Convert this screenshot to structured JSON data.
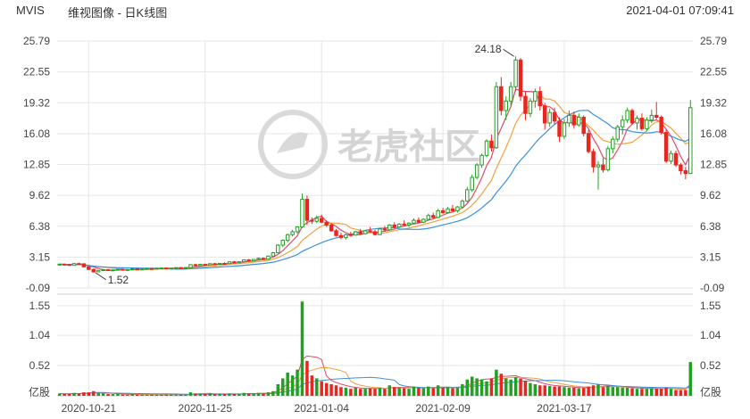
{
  "header": {
    "ticker": "MVIS",
    "subtitle": "维视图像 - 日K线图",
    "timestamp": "2021-04-01 07:09:41"
  },
  "watermark": {
    "text": "老虎社区"
  },
  "colors": {
    "up": "#21a121",
    "down": "#e8261f",
    "ma5": "#e04a6a",
    "ma10": "#f0a040",
    "ma20": "#3c8fdc",
    "grid": "#e6e6e6"
  },
  "chart_data": {
    "type": "candlestick",
    "price_ticks": [
      "25.79",
      "22.55",
      "19.32",
      "16.08",
      "12.85",
      "9.62",
      "6.38",
      "3.15",
      "-0.09"
    ],
    "volume_ticks": [
      "1.55",
      "1.04",
      "0.52"
    ],
    "volume_unit": "亿股",
    "x_labels": [
      "2020-10-21",
      "2020-11-25",
      "2021-01-04",
      "2021-02-09",
      "2021-03-17"
    ],
    "annotations": [
      {
        "text": "24.18",
        "date": "2021-02-09"
      },
      {
        "text": "1.52",
        "date": "2020-10-26"
      }
    ],
    "candles": [
      [
        2.38,
        2.45,
        2.3,
        2.4,
        0.04
      ],
      [
        2.4,
        2.48,
        2.33,
        2.36,
        0.03
      ],
      [
        2.36,
        2.42,
        2.25,
        2.28,
        0.03
      ],
      [
        2.28,
        2.52,
        2.26,
        2.46,
        0.05
      ],
      [
        2.46,
        2.56,
        2.4,
        2.44,
        0.04
      ],
      [
        2.44,
        2.5,
        2.1,
        2.12,
        0.06
      ],
      [
        2.12,
        2.18,
        1.8,
        1.85,
        0.06
      ],
      [
        1.85,
        1.95,
        1.52,
        1.6,
        0.08
      ],
      [
        1.6,
        1.8,
        1.55,
        1.75,
        0.05
      ],
      [
        1.75,
        1.9,
        1.7,
        1.82,
        0.04
      ],
      [
        1.82,
        1.88,
        1.7,
        1.74,
        0.03
      ],
      [
        1.74,
        1.85,
        1.68,
        1.8,
        0.03
      ],
      [
        1.8,
        1.9,
        1.75,
        1.86,
        0.03
      ],
      [
        1.86,
        1.92,
        1.78,
        1.8,
        0.02
      ],
      [
        1.8,
        1.88,
        1.74,
        1.84,
        0.02
      ],
      [
        1.84,
        1.96,
        1.8,
        1.92,
        0.03
      ],
      [
        1.92,
        1.98,
        1.82,
        1.86,
        0.02
      ],
      [
        1.86,
        1.94,
        1.8,
        1.9,
        0.02
      ],
      [
        1.9,
        1.98,
        1.85,
        1.95,
        0.02
      ],
      [
        1.95,
        2.02,
        1.88,
        1.92,
        0.02
      ],
      [
        1.92,
        2.0,
        1.86,
        1.98,
        0.02
      ],
      [
        1.98,
        2.06,
        1.92,
        2.0,
        0.02
      ],
      [
        2.0,
        2.05,
        1.9,
        1.94,
        0.02
      ],
      [
        1.94,
        2.02,
        1.88,
        1.99,
        0.02
      ],
      [
        1.99,
        2.08,
        1.95,
        2.04,
        0.02
      ],
      [
        2.04,
        2.1,
        1.96,
        2.0,
        0.02
      ],
      [
        2.0,
        2.08,
        1.95,
        2.05,
        0.02
      ],
      [
        2.05,
        2.4,
        2.02,
        2.35,
        0.06
      ],
      [
        2.35,
        2.45,
        2.2,
        2.25,
        0.04
      ],
      [
        2.25,
        2.4,
        2.2,
        2.38,
        0.04
      ],
      [
        2.38,
        2.46,
        2.28,
        2.32,
        0.03
      ],
      [
        2.32,
        2.5,
        2.28,
        2.45,
        0.04
      ],
      [
        2.45,
        2.55,
        2.35,
        2.4,
        0.03
      ],
      [
        2.4,
        2.52,
        2.36,
        2.48,
        0.03
      ],
      [
        2.48,
        2.6,
        2.4,
        2.46,
        0.03
      ],
      [
        2.46,
        2.7,
        2.42,
        2.65,
        0.04
      ],
      [
        2.65,
        2.75,
        2.5,
        2.55,
        0.03
      ],
      [
        2.55,
        2.7,
        2.5,
        2.66,
        0.03
      ],
      [
        2.66,
        2.9,
        2.6,
        2.85,
        0.05
      ],
      [
        2.85,
        2.95,
        2.7,
        2.75,
        0.04
      ],
      [
        2.75,
        2.95,
        2.7,
        2.9,
        0.04
      ],
      [
        2.9,
        3.1,
        2.8,
        3.02,
        0.05
      ],
      [
        3.02,
        3.1,
        2.85,
        2.92,
        0.04
      ],
      [
        2.92,
        3.3,
        2.9,
        3.25,
        0.06
      ],
      [
        3.25,
        3.7,
        3.2,
        3.6,
        0.08
      ],
      [
        3.6,
        4.5,
        3.55,
        4.4,
        0.2
      ],
      [
        4.4,
        5.0,
        4.2,
        4.9,
        0.3
      ],
      [
        4.9,
        5.6,
        4.7,
        5.5,
        0.4
      ],
      [
        5.5,
        6.0,
        5.3,
        5.8,
        0.35
      ],
      [
        5.8,
        6.4,
        5.6,
        6.3,
        0.45
      ],
      [
        6.3,
        9.8,
        6.2,
        9.2,
        1.62
      ],
      [
        9.2,
        9.6,
        6.5,
        7.0,
        0.6
      ],
      [
        7.0,
        7.3,
        6.6,
        6.9,
        0.35
      ],
      [
        6.9,
        7.5,
        6.7,
        7.2,
        0.3
      ],
      [
        7.2,
        7.6,
        6.7,
        6.8,
        0.25
      ],
      [
        6.8,
        7.0,
        6.3,
        6.5,
        0.22
      ],
      [
        6.5,
        6.7,
        5.8,
        5.9,
        0.2
      ],
      [
        5.9,
        6.1,
        5.3,
        5.4,
        0.18
      ],
      [
        5.4,
        5.7,
        5.0,
        5.2,
        0.15
      ],
      [
        5.2,
        5.6,
        5.0,
        5.5,
        0.14
      ],
      [
        5.5,
        5.8,
        5.3,
        5.45,
        0.12
      ],
      [
        5.45,
        5.9,
        5.4,
        5.8,
        0.14
      ],
      [
        5.8,
        6.1,
        5.5,
        5.6,
        0.12
      ],
      [
        5.6,
        6.0,
        5.5,
        5.9,
        0.12
      ],
      [
        5.9,
        6.3,
        5.7,
        5.8,
        0.13
      ],
      [
        5.8,
        6.0,
        5.4,
        5.5,
        0.12
      ],
      [
        5.5,
        6.2,
        5.45,
        6.1,
        0.14
      ],
      [
        6.1,
        6.4,
        5.8,
        6.0,
        0.12
      ],
      [
        6.0,
        6.6,
        5.9,
        6.5,
        0.18
      ],
      [
        6.5,
        6.8,
        6.2,
        6.3,
        0.15
      ],
      [
        6.3,
        6.7,
        6.2,
        6.6,
        0.14
      ],
      [
        6.6,
        7.0,
        6.4,
        6.5,
        0.13
      ],
      [
        6.5,
        6.8,
        6.3,
        6.7,
        0.12
      ],
      [
        6.7,
        7.2,
        6.6,
        7.0,
        0.16
      ],
      [
        7.0,
        7.3,
        6.7,
        6.8,
        0.14
      ],
      [
        6.8,
        7.2,
        6.7,
        7.1,
        0.13
      ],
      [
        7.1,
        7.7,
        7.0,
        7.5,
        0.16
      ],
      [
        7.5,
        7.8,
        7.2,
        7.3,
        0.13
      ],
      [
        7.3,
        8.2,
        7.2,
        8.0,
        0.18
      ],
      [
        8.0,
        8.3,
        7.7,
        7.8,
        0.14
      ],
      [
        7.8,
        8.4,
        7.7,
        8.2,
        0.15
      ],
      [
        8.2,
        8.6,
        7.9,
        8.0,
        0.13
      ],
      [
        8.0,
        8.5,
        7.8,
        8.4,
        0.14
      ],
      [
        8.4,
        9.2,
        8.3,
        9.0,
        0.2
      ],
      [
        9.0,
        10.5,
        8.9,
        10.2,
        0.28
      ],
      [
        10.2,
        11.8,
        10.0,
        11.5,
        0.33
      ],
      [
        11.5,
        13.0,
        11.3,
        12.8,
        0.3
      ],
      [
        12.8,
        14.0,
        12.5,
        13.8,
        0.28
      ],
      [
        13.8,
        15.5,
        13.6,
        15.3,
        0.25
      ],
      [
        15.3,
        16.0,
        14.2,
        14.6,
        0.3
      ],
      [
        14.6,
        21.5,
        14.5,
        21.0,
        0.45
      ],
      [
        21.0,
        22.0,
        18.0,
        18.5,
        0.38
      ],
      [
        18.5,
        20.0,
        17.5,
        19.5,
        0.3
      ],
      [
        19.5,
        21.5,
        19.0,
        21.0,
        0.28
      ],
      [
        21.0,
        24.18,
        20.5,
        23.8,
        0.32
      ],
      [
        23.8,
        24.0,
        19.5,
        20.0,
        0.3
      ],
      [
        20.0,
        20.5,
        17.5,
        18.2,
        0.26
      ],
      [
        18.2,
        19.8,
        17.8,
        19.5,
        0.22
      ],
      [
        19.5,
        20.8,
        18.8,
        20.5,
        0.2
      ],
      [
        20.5,
        21.0,
        18.5,
        19.0,
        0.18
      ],
      [
        19.0,
        19.3,
        16.5,
        17.2,
        0.18
      ],
      [
        17.2,
        18.7,
        16.8,
        18.3,
        0.17
      ],
      [
        18.3,
        18.8,
        17.0,
        17.4,
        0.16
      ],
      [
        17.4,
        17.8,
        15.2,
        15.8,
        0.16
      ],
      [
        15.8,
        17.6,
        15.5,
        17.2,
        0.15
      ],
      [
        17.2,
        18.5,
        16.8,
        18.0,
        0.14
      ],
      [
        18.0,
        18.4,
        16.6,
        17.0,
        0.14
      ],
      [
        17.0,
        18.2,
        16.8,
        17.8,
        0.13
      ],
      [
        17.8,
        18.0,
        15.8,
        16.1,
        0.13
      ],
      [
        16.1,
        16.5,
        14.0,
        14.2,
        0.16
      ],
      [
        14.2,
        14.5,
        12.0,
        12.6,
        0.18
      ],
      [
        12.6,
        13.2,
        10.2,
        12.8,
        0.2
      ],
      [
        12.8,
        13.5,
        12.0,
        12.3,
        0.15
      ],
      [
        12.3,
        14.8,
        12.1,
        14.5,
        0.17
      ],
      [
        14.5,
        15.8,
        14.0,
        15.5,
        0.15
      ],
      [
        15.5,
        17.0,
        15.2,
        16.8,
        0.15
      ],
      [
        16.8,
        18.0,
        16.0,
        17.5,
        0.14
      ],
      [
        17.5,
        18.8,
        17.2,
        18.5,
        0.14
      ],
      [
        18.5,
        18.7,
        17.0,
        17.2,
        0.13
      ],
      [
        17.2,
        18.0,
        16.5,
        17.7,
        0.12
      ],
      [
        17.7,
        18.2,
        16.4,
        16.6,
        0.12
      ],
      [
        16.6,
        17.8,
        16.3,
        17.5,
        0.12
      ],
      [
        17.5,
        18.6,
        17.2,
        18.0,
        0.13
      ],
      [
        18.0,
        19.4,
        17.6,
        17.8,
        0.12
      ],
      [
        17.8,
        18.0,
        16.0,
        16.2,
        0.12
      ],
      [
        16.2,
        16.5,
        13.0,
        13.2,
        0.14
      ],
      [
        13.2,
        14.3,
        12.9,
        14.0,
        0.12
      ],
      [
        14.0,
        14.3,
        12.6,
        12.8,
        0.1
      ],
      [
        12.8,
        13.0,
        11.8,
        12.2,
        0.1
      ],
      [
        12.2,
        12.6,
        11.3,
        11.9,
        0.1
      ],
      [
        11.9,
        19.6,
        11.9,
        18.8,
        0.58
      ]
    ]
  }
}
